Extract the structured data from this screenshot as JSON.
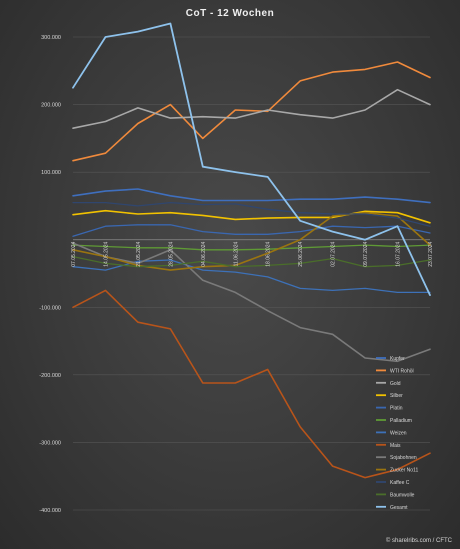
{
  "chart_data": {
    "type": "line",
    "title": "CoT - 12 Wochen",
    "credit": "© sharelribs.com / CFTC",
    "ylim": [
      -400000,
      300000
    ],
    "yticks": [
      300000,
      200000,
      100000,
      0,
      -100000,
      -200000,
      -300000,
      -400000
    ],
    "ytick_labels": [
      "300.000",
      "200.000",
      "100.000",
      "",
      "-100.000",
      "-200.000",
      "-300.000",
      "-400.000"
    ],
    "categories": [
      "07.05.2024",
      "14.05.2024",
      "21.05.2024",
      "28.05.2024",
      "04.06.2024",
      "11.06.2024",
      "18.06.2024",
      "25.06.2024",
      "02.07.2024",
      "09.07.2024",
      "16.07.2024",
      "23.07.2024"
    ],
    "grid": true,
    "legend_position": "bottom-right",
    "series": [
      {
        "name": "Kupfer",
        "color": "#3f6fbe",
        "width": 1.6,
        "values": [
          65000,
          72000,
          75000,
          65000,
          58000,
          58000,
          58000,
          60000,
          60000,
          63000,
          60000,
          55000
        ]
      },
      {
        "name": "WTI Rohöl",
        "color": "#f08a3c",
        "width": 1.6,
        "values": [
          117000,
          128000,
          172000,
          200000,
          150000,
          192000,
          190000,
          235000,
          248000,
          252000,
          263000,
          240000
        ]
      },
      {
        "name": "Gold",
        "color": "#a8a8a8",
        "width": 1.6,
        "values": [
          165000,
          175000,
          195000,
          180000,
          182000,
          180000,
          192000,
          185000,
          180000,
          192000,
          222000,
          200000
        ]
      },
      {
        "name": "Silber",
        "color": "#f2c200",
        "width": 1.6,
        "values": [
          37000,
          43000,
          38000,
          40000,
          36000,
          30000,
          32000,
          33000,
          33000,
          42000,
          40000,
          25000
        ]
      },
      {
        "name": "Platin",
        "color": "#3a67b0",
        "width": 1.3,
        "values": [
          5000,
          20000,
          22000,
          22000,
          12000,
          8000,
          8000,
          12000,
          20000,
          18000,
          20000,
          10000
        ]
      },
      {
        "name": "Palladium",
        "color": "#5f9a35",
        "width": 1.3,
        "values": [
          -8000,
          -10000,
          -12000,
          -12000,
          -15000,
          -15000,
          -14000,
          -12000,
          -10000,
          -8000,
          -10000,
          -8000
        ]
      },
      {
        "name": "Weizen",
        "color": "#3d71b8",
        "width": 1.3,
        "values": [
          -40000,
          -45000,
          -32000,
          -30000,
          -45000,
          -48000,
          -55000,
          -72000,
          -75000,
          -72000,
          -78000,
          -78000
        ]
      },
      {
        "name": "Mais",
        "color": "#b8541a",
        "width": 1.6,
        "values": [
          -100000,
          -75000,
          -122000,
          -132000,
          -212000,
          -212000,
          -192000,
          -277000,
          -335000,
          -352000,
          -340000,
          -316000
        ]
      },
      {
        "name": "Sojabohnen",
        "color": "#7a7a7a",
        "width": 1.6,
        "values": [
          -5000,
          -25000,
          -35000,
          -15000,
          -60000,
          -78000,
          -105000,
          -130000,
          -140000,
          -175000,
          -180000,
          -162000
        ]
      },
      {
        "name": "Zucker No11",
        "color": "#9a7410",
        "width": 1.6,
        "values": [
          -15000,
          -25000,
          -38000,
          -45000,
          -40000,
          -38000,
          -20000,
          0,
          35000,
          40000,
          35000,
          -8000
        ]
      },
      {
        "name": "Kaffee C",
        "color": "#30466e",
        "width": 1.3,
        "values": [
          55000,
          55000,
          50000,
          55000,
          52000,
          53000,
          45000,
          40000,
          38000,
          38000,
          32000,
          20000
        ]
      },
      {
        "name": "Baumwolle",
        "color": "#4a6e2a",
        "width": 1.3,
        "values": [
          -25000,
          -35000,
          -40000,
          -38000,
          -32000,
          -40000,
          -38000,
          -35000,
          -28000,
          -40000,
          -38000,
          -30000
        ]
      },
      {
        "name": "Gesamt",
        "color": "#8ec2ec",
        "width": 1.8,
        "values": [
          225000,
          300000,
          308000,
          320000,
          108000,
          100000,
          93000,
          28000,
          12000,
          0,
          20000,
          -82000
        ]
      }
    ]
  }
}
